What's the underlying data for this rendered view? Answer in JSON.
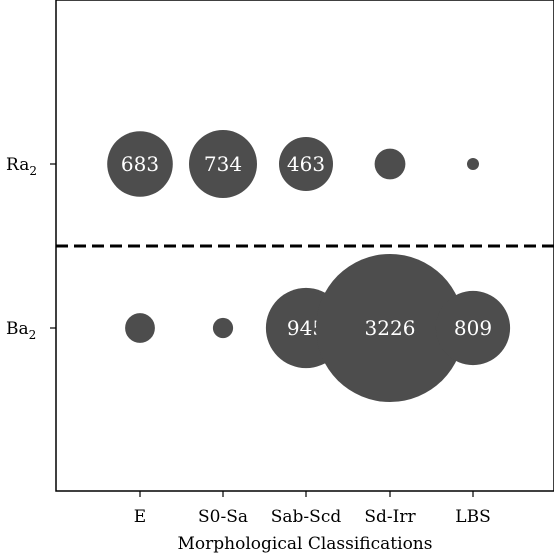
{
  "chart_data": {
    "type": "bubble",
    "xlabel": "Morphological Classifications",
    "ylabel": "",
    "categories": [
      "E",
      "S0-Sa",
      "Sab-Scd",
      "Sd-Irr",
      "LBS"
    ],
    "rows": [
      {
        "label_main": "Ra",
        "label_sub": "2",
        "values": [
          683,
          734,
          463,
          150,
          20
        ],
        "shown_labels": [
          "683",
          "734",
          "463",
          "",
          ""
        ]
      },
      {
        "label_main": "Ba",
        "label_sub": "2",
        "values": [
          130,
          60,
          945,
          3226,
          809
        ],
        "shown_labels": [
          "",
          "",
          "945",
          "3226",
          "809"
        ]
      }
    ],
    "bubble_color": "#4d4d4d",
    "separator": "dashed line between rows",
    "grid": false
  }
}
